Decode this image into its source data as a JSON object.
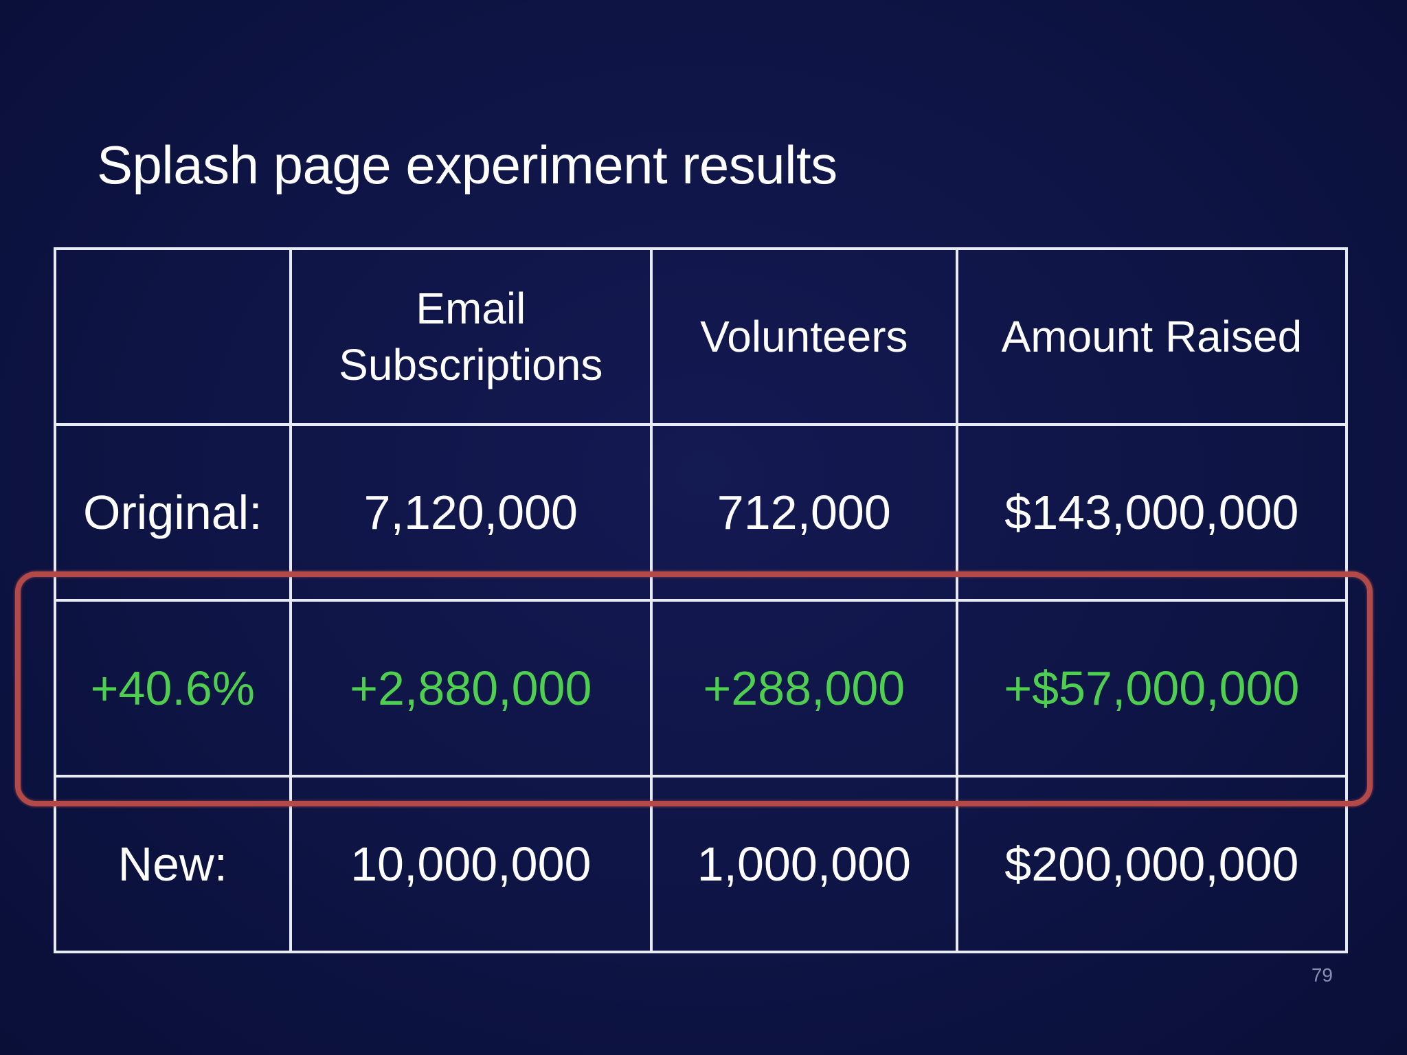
{
  "slide": {
    "title": "Splash page experiment results",
    "page_number": "79"
  },
  "table": {
    "headers": {
      "blank": "",
      "email_line1": "Email",
      "email_line2": "Subscriptions",
      "volunteers": "Volunteers",
      "amount": "Amount Raised"
    },
    "rows": [
      {
        "label": "Original:",
        "email": "7,120,000",
        "volunteers": "712,000",
        "amount": "$143,000,000"
      },
      {
        "label": "+40.6%",
        "email": "+2,880,000",
        "volunteers": "+288,000",
        "amount": "+$57,000,000"
      },
      {
        "label": "New:",
        "email": "10,000,000",
        "volunteers": "1,000,000",
        "amount": "$200,000,000"
      }
    ]
  },
  "colors": {
    "background": "#0d1240",
    "gridline": "#e8eaf4",
    "text": "#ffffff",
    "delta_text": "#4fcf4f",
    "highlight_frame": "#b24a4a",
    "page_number": "#8a8fb0"
  }
}
